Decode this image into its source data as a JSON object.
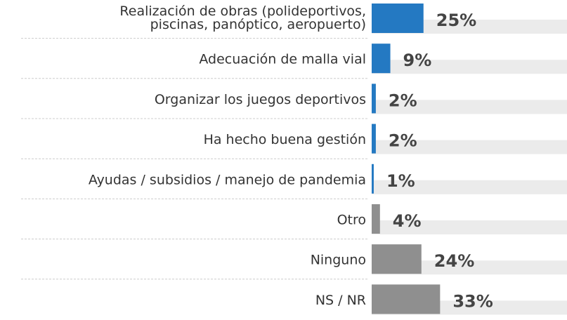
{
  "chart_data": {
    "type": "barh",
    "categories": [
      [
        "Realización de obras (polideportivos,",
        "piscinas, panóptico, aeropuerto)"
      ],
      "Adecuación de malla vial",
      "Organizar los juegos deportivos",
      "Ha hecho buena gestión",
      "Ayudas / subsidios / manejo de pandemia",
      "Otro",
      "Ninguno",
      "NS / NR"
    ],
    "values": [
      25,
      9,
      2,
      2,
      1,
      4,
      24,
      33
    ],
    "value_labels": [
      "25%",
      "9%",
      "2%",
      "2%",
      "1%",
      "4%",
      "24%",
      "33%"
    ],
    "colors": [
      "#2479c2",
      "#2479c2",
      "#2479c2",
      "#2479c2",
      "#2479c2",
      "#8f8f8f",
      "#8f8f8f",
      "#8f8f8f"
    ]
  }
}
